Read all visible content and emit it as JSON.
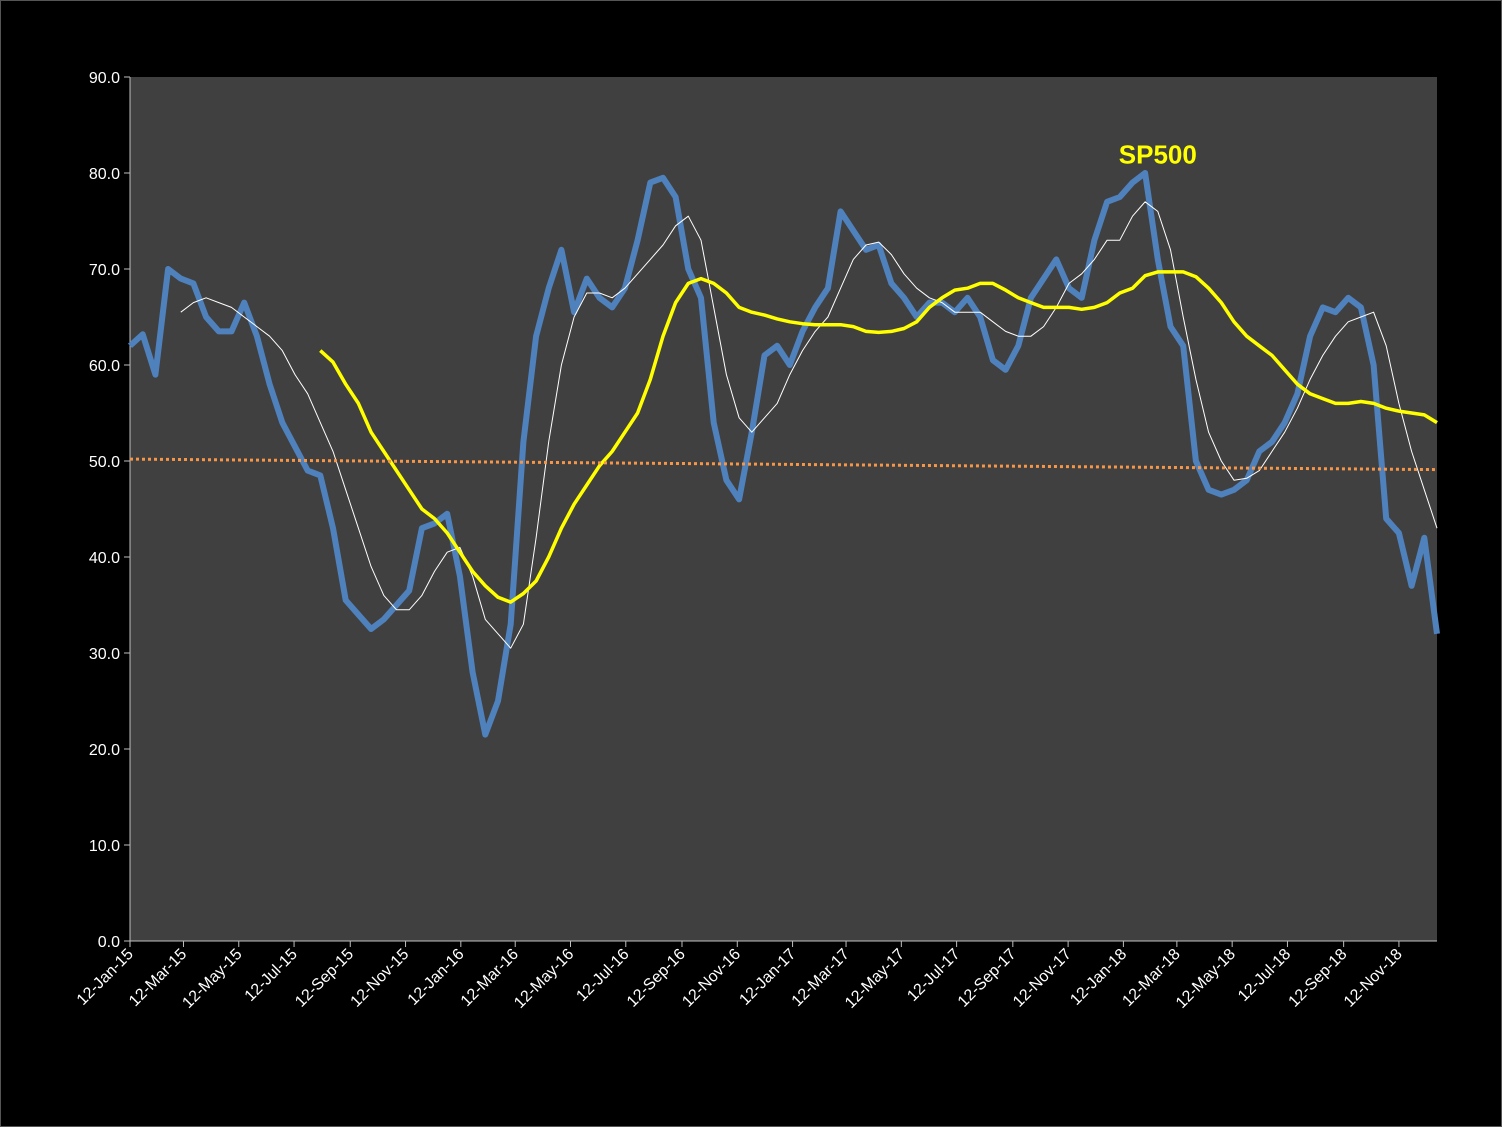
{
  "chart_data": {
    "type": "line",
    "annotation": "SP500",
    "annotation_at": [
      "2018-02-19",
      81
    ],
    "annotation_color": "#ffff00",
    "x": [
      "2015-01-12",
      "2015-01-26",
      "2015-02-09",
      "2015-02-23",
      "2015-03-09",
      "2015-03-23",
      "2015-04-06",
      "2015-04-20",
      "2015-05-04",
      "2015-05-18",
      "2015-06-01",
      "2015-06-15",
      "2015-06-29",
      "2015-07-13",
      "2015-07-27",
      "2015-08-10",
      "2015-08-24",
      "2015-09-07",
      "2015-09-21",
      "2015-10-05",
      "2015-10-19",
      "2015-11-02",
      "2015-11-16",
      "2015-11-30",
      "2015-12-14",
      "2015-12-28",
      "2016-01-11",
      "2016-01-25",
      "2016-02-08",
      "2016-02-22",
      "2016-03-07",
      "2016-03-21",
      "2016-04-04",
      "2016-04-18",
      "2016-05-02",
      "2016-05-16",
      "2016-05-30",
      "2016-06-13",
      "2016-06-27",
      "2016-07-11",
      "2016-07-25",
      "2016-08-08",
      "2016-08-22",
      "2016-09-05",
      "2016-09-19",
      "2016-10-03",
      "2016-10-17",
      "2016-10-31",
      "2016-11-14",
      "2016-11-28",
      "2016-12-12",
      "2016-12-26",
      "2017-01-09",
      "2017-01-23",
      "2017-02-06",
      "2017-02-20",
      "2017-03-06",
      "2017-03-20",
      "2017-04-03",
      "2017-04-17",
      "2017-05-01",
      "2017-05-15",
      "2017-05-29",
      "2017-06-12",
      "2017-06-26",
      "2017-07-10",
      "2017-07-24",
      "2017-08-07",
      "2017-08-21",
      "2017-09-04",
      "2017-09-18",
      "2017-10-02",
      "2017-10-16",
      "2017-10-30",
      "2017-11-13",
      "2017-11-27",
      "2017-12-11",
      "2017-12-25",
      "2018-01-08",
      "2018-01-22",
      "2018-02-05",
      "2018-02-19",
      "2018-03-05",
      "2018-03-19",
      "2018-04-02",
      "2018-04-16",
      "2018-04-30",
      "2018-05-14",
      "2018-05-28",
      "2018-06-11",
      "2018-06-25",
      "2018-07-09",
      "2018-07-23",
      "2018-08-06",
      "2018-08-20",
      "2018-09-03",
      "2018-09-17",
      "2018-10-01",
      "2018-10-15",
      "2018-10-29",
      "2018-11-12",
      "2018-11-26",
      "2018-12-10",
      "2018-12-24"
    ],
    "series": [
      {
        "color": "#4f81bd",
        "width": 6,
        "values": [
          62,
          63.2,
          59,
          70,
          69,
          68.5,
          65,
          63.5,
          63.5,
          66.5,
          63,
          58,
          54,
          51.5,
          49,
          48.5,
          43,
          35.5,
          34,
          32.5,
          33.5,
          35,
          36.5,
          43,
          43.5,
          44.5,
          38,
          28,
          21.5,
          25,
          33,
          52,
          63,
          68,
          72,
          65.5,
          69,
          67,
          66,
          68,
          73,
          79,
          79.5,
          77.5,
          70,
          67,
          54,
          48,
          46,
          53,
          61,
          62,
          60,
          63.5,
          66,
          68,
          76,
          74,
          72,
          72.5,
          68.5,
          67,
          65,
          66.5,
          66.5,
          65.5,
          67,
          65,
          60.5,
          59.5,
          62,
          67,
          69,
          71,
          68,
          67,
          73,
          77,
          77.5,
          79,
          80,
          71,
          64,
          62,
          50,
          47,
          46.5,
          47,
          48,
          51,
          52,
          54,
          57,
          63,
          66,
          65.5,
          67,
          66,
          60,
          44,
          42.5,
          37,
          42,
          32
        ]
      },
      {
        "color": "#ffffff",
        "width": 1,
        "values": [
          null,
          null,
          null,
          null,
          65.5,
          66.5,
          67,
          66.5,
          66,
          65,
          64,
          63,
          61.5,
          59,
          57,
          54,
          51,
          47,
          43,
          39,
          36,
          34.5,
          34.5,
          36,
          38.5,
          40.5,
          41,
          38,
          33.5,
          32,
          30.5,
          33,
          42,
          52,
          60,
          65,
          67.5,
          67.5,
          67,
          68,
          69.5,
          71,
          72.5,
          74.5,
          75.5,
          73,
          66,
          59,
          54.5,
          53,
          54.5,
          56,
          59,
          61.5,
          63.5,
          65,
          68,
          71,
          72.5,
          72.8,
          71.5,
          69.5,
          68,
          67,
          66.5,
          65.5,
          65.5,
          65.5,
          64.5,
          63.5,
          63,
          63,
          64,
          66,
          68.5,
          69.5,
          71,
          73,
          73,
          75.5,
          77,
          76,
          72,
          65,
          58.5,
          53,
          50,
          48,
          48.2,
          49,
          51,
          53,
          55.5,
          58.5,
          61,
          63,
          64.5,
          65,
          65.5,
          62,
          56,
          51,
          47,
          43
        ]
      },
      {
        "color": "#ffff00",
        "width": 3.5,
        "values": [
          null,
          null,
          null,
          null,
          null,
          null,
          null,
          null,
          null,
          null,
          null,
          null,
          null,
          null,
          null,
          61.5,
          60.3,
          58,
          56,
          53,
          51,
          49,
          47,
          45,
          44,
          42.5,
          40.5,
          38.5,
          37,
          35.8,
          35.3,
          36.2,
          37.5,
          40,
          43,
          45.5,
          47.5,
          49.5,
          51,
          53,
          55,
          58.5,
          63,
          66.5,
          68.5,
          69,
          68.5,
          67.5,
          66,
          65.5,
          65.2,
          64.8,
          64.5,
          64.3,
          64.2,
          64.2,
          64.2,
          64,
          63.5,
          63.4,
          63.5,
          63.8,
          64.5,
          66,
          67,
          67.8,
          68,
          68.5,
          68.5,
          67.8,
          67,
          66.5,
          66,
          66,
          66,
          65.8,
          66,
          66.5,
          67.5,
          68,
          69.3,
          69.7,
          69.7,
          69.7,
          69.2,
          68,
          66.5,
          64.5,
          63,
          62,
          61,
          59.5,
          58,
          57,
          56.5,
          56,
          56,
          56.2,
          56,
          55.5,
          55.2,
          55,
          54.8,
          54
        ]
      },
      {
        "color": "#f79646",
        "width": 3,
        "dashed": true,
        "x": [
          "2015-01-12",
          "2018-12-24"
        ],
        "values": [
          50.2,
          49.1
        ]
      }
    ],
    "xlim": [
      "2015-01-12",
      "2018-12-24"
    ],
    "xticks": [
      {
        "value": "2015-01-12",
        "label": "12-Jan-15"
      },
      {
        "value": "2015-03-12",
        "label": "12-Mar-15"
      },
      {
        "value": "2015-05-12",
        "label": "12-May-15"
      },
      {
        "value": "2015-07-12",
        "label": "12-Jul-15"
      },
      {
        "value": "2015-09-12",
        "label": "12-Sep-15"
      },
      {
        "value": "2015-11-12",
        "label": "12-Nov-15"
      },
      {
        "value": "2016-01-12",
        "label": "12-Jan-16"
      },
      {
        "value": "2016-03-12",
        "label": "12-Mar-16"
      },
      {
        "value": "2016-05-12",
        "label": "12-May-16"
      },
      {
        "value": "2016-07-12",
        "label": "12-Jul-16"
      },
      {
        "value": "2016-09-12",
        "label": "12-Sep-16"
      },
      {
        "value": "2016-11-12",
        "label": "12-Nov-16"
      },
      {
        "value": "2017-01-12",
        "label": "12-Jan-17"
      },
      {
        "value": "2017-03-12",
        "label": "12-Mar-17"
      },
      {
        "value": "2017-05-12",
        "label": "12-May-17"
      },
      {
        "value": "2017-07-12",
        "label": "12-Jul-17"
      },
      {
        "value": "2017-09-12",
        "label": "12-Sep-17"
      },
      {
        "value": "2017-11-12",
        "label": "12-Nov-17"
      },
      {
        "value": "2018-01-12",
        "label": "12-Jan-18"
      },
      {
        "value": "2018-03-12",
        "label": "12-Mar-18"
      },
      {
        "value": "2018-05-12",
        "label": "12-May-18"
      },
      {
        "value": "2018-07-12",
        "label": "12-Jul-18"
      },
      {
        "value": "2018-09-12",
        "label": "12-Sep-18"
      },
      {
        "value": "2018-11-12",
        "label": "12-Nov-18"
      }
    ],
    "ylim": [
      0,
      90
    ],
    "yticks": [
      {
        "value": 0,
        "label": "0.0"
      },
      {
        "value": 10,
        "label": "10.0"
      },
      {
        "value": 20,
        "label": "20.0"
      },
      {
        "value": 30,
        "label": "30.0"
      },
      {
        "value": 40,
        "label": "40.0"
      },
      {
        "value": 50,
        "label": "50.0"
      },
      {
        "value": 60,
        "label": "60.0"
      },
      {
        "value": 70,
        "label": "70.0"
      },
      {
        "value": 80,
        "label": "80.0"
      },
      {
        "value": 90,
        "label": "90.0"
      }
    ]
  }
}
